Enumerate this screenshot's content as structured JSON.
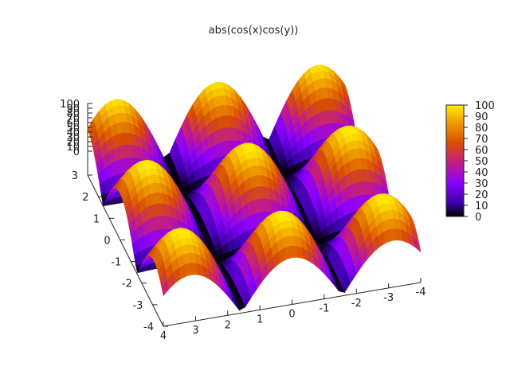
{
  "chart_data": {
    "type": "heatmap",
    "title": "abs(cos(x)cos(y))",
    "function": "abs(cos(x)cos(y))",
    "xlim": [
      -4,
      4
    ],
    "ylim": [
      -4,
      3
    ],
    "zlim": [
      0,
      100
    ],
    "x_ticks": [
      "4",
      "3",
      "2",
      "1",
      "0",
      "-1",
      "-2",
      "-3",
      "-4"
    ],
    "y_ticks": [
      "3",
      "2",
      "1",
      "0",
      "-1",
      "-2",
      "-3",
      "-4"
    ],
    "z_ticks": [
      "100",
      "90",
      "80",
      "70",
      "60",
      "50",
      "40",
      "30",
      "20",
      "10",
      "0"
    ],
    "colorbar_ticks": [
      "100",
      "90",
      "80",
      "70",
      "60",
      "50",
      "40",
      "30",
      "20",
      "10",
      "0"
    ],
    "colorbar_range": [
      0,
      100
    ],
    "colormap": [
      "#000000",
      "#3b00a8",
      "#8a00ff",
      "#c21b8a",
      "#d94f00",
      "#f0a000",
      "#ffee00"
    ],
    "marker": "+",
    "surface_peaks": [
      {
        "x": 0,
        "y": 0,
        "z": 100
      },
      {
        "x": 3.14,
        "y": 0,
        "z": 100
      },
      {
        "x": -3.14,
        "y": 0,
        "z": 100
      },
      {
        "x": 0,
        "y": 3.14,
        "z": 100
      },
      {
        "x": 0,
        "y": -3.14,
        "z": 100
      },
      {
        "x": 3.14,
        "y": 3.14,
        "z": 100
      },
      {
        "x": -3.14,
        "y": 3.14,
        "z": 100
      },
      {
        "x": 3.14,
        "y": -3.14,
        "z": 100
      },
      {
        "x": -3.14,
        "y": -3.14,
        "z": 100
      }
    ]
  }
}
